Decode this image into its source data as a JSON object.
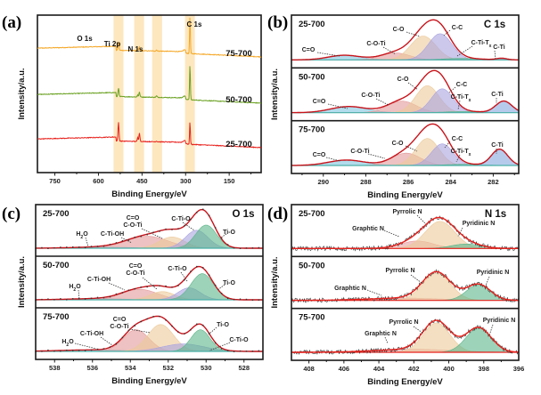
{
  "figure": {
    "panels": [
      "(a)",
      "(b)",
      "(c)",
      "(d)"
    ]
  },
  "chart_data": [
    {
      "panel": "(a)",
      "type": "line",
      "title": "",
      "xlabel": "Binding Energy/eV",
      "ylabel": "Intensity/a.u.",
      "xlim": [
        810,
        40
      ],
      "xticks": [
        750,
        600,
        450,
        300,
        150
      ],
      "xreversed": true,
      "highlight_bands": [
        {
          "label": "O 1s",
          "range": [
            548,
            514
          ],
          "peak": 531
        },
        {
          "label": "Ti 2p",
          "range": [
            477,
            443
          ],
          "peak": 459
        },
        {
          "label": "N 1s",
          "range": [
            415,
            381
          ],
          "peak": 400
        },
        {
          "label": "C 1s",
          "range": [
            302,
            268
          ],
          "peak": 285
        }
      ],
      "band_color": "#fde7bf",
      "series": [
        {
          "name": "75-700",
          "color": "#f5a623",
          "offset": 2.0,
          "peaks": {
            "O": 0.35,
            "Ti": 0.18,
            "N": 0.06,
            "C": 1.0
          }
        },
        {
          "name": "50-700",
          "color": "#6aa121",
          "offset": 1.0,
          "peaks": {
            "O": 0.35,
            "Ti": 0.25,
            "N": 0.08,
            "C": 0.95
          }
        },
        {
          "name": "25-700",
          "color": "#e8211c",
          "offset": 0.0,
          "peaks": {
            "O": 0.75,
            "Ti": 0.45,
            "N": 0.04,
            "C": 0.6
          }
        }
      ]
    },
    {
      "panel": "(b)",
      "type": "area",
      "core_level": "C 1s",
      "xlabel": "Binding Energy/eV",
      "ylabel": "Intensity/a.u.",
      "xlim": [
        291.5,
        280.8
      ],
      "xticks": [
        290,
        288,
        286,
        284,
        282
      ],
      "xreversed": true,
      "component_colors": {
        "C=O": "#7fc4e0",
        "C-O-Ti": "#e39a9a",
        "C-O": "#ecc99a",
        "C-C": "#a9a3e0",
        "C-Ti-Tx": "#5bb58a",
        "C-Ti": "#86a9e0"
      },
      "envelope_color": "#c8141b",
      "samples": [
        {
          "name": "25-700",
          "components": [
            {
              "label": "C=O",
              "center": 289.0,
              "fwhm": 1.8,
              "height": 0.12
            },
            {
              "label": "C-O-Ti",
              "center": 286.6,
              "fwhm": 1.6,
              "height": 0.18
            },
            {
              "label": "C-O",
              "center": 285.3,
              "fwhm": 1.4,
              "height": 0.62
            },
            {
              "label": "C-C",
              "center": 284.5,
              "fwhm": 1.3,
              "height": 0.68
            },
            {
              "label": "C-Ti-Tx",
              "center": 283.5,
              "fwhm": 2.0,
              "height": 0.04
            },
            {
              "label": "C-Ti",
              "center": 281.6,
              "fwhm": 0.6,
              "height": 0.04
            }
          ],
          "labels": [
            "C=O",
            "C-O-Ti",
            "C-O",
            "C-C",
            "C-Ti-Tₓ",
            "C-Ti"
          ]
        },
        {
          "name": "50-700",
          "components": [
            {
              "label": "C=O",
              "center": 288.8,
              "fwhm": 2.0,
              "height": 0.16
            },
            {
              "label": "C-O-Ti",
              "center": 286.3,
              "fwhm": 1.6,
              "height": 0.3
            },
            {
              "label": "C-O",
              "center": 285.1,
              "fwhm": 1.3,
              "height": 0.7
            },
            {
              "label": "C-C",
              "center": 284.4,
              "fwhm": 1.2,
              "height": 0.62
            },
            {
              "label": "C-Ti-Tx",
              "center": 283.4,
              "fwhm": 2.0,
              "height": 0.03
            },
            {
              "label": "C-Ti",
              "center": 281.5,
              "fwhm": 0.9,
              "height": 0.3
            }
          ],
          "labels": [
            "C=O",
            "C-O-Ti",
            "C-O",
            "C-C",
            "C-Ti-Tₓ",
            "C-Ti"
          ]
        },
        {
          "name": "75-700",
          "components": [
            {
              "label": "C=O",
              "center": 288.9,
              "fwhm": 2.0,
              "height": 0.14
            },
            {
              "label": "C-O-Ti",
              "center": 286.1,
              "fwhm": 1.6,
              "height": 0.32
            },
            {
              "label": "C-O",
              "center": 285.1,
              "fwhm": 1.3,
              "height": 0.7
            },
            {
              "label": "C-C",
              "center": 284.4,
              "fwhm": 1.2,
              "height": 0.56
            },
            {
              "label": "C-Ti-Tx",
              "center": 283.4,
              "fwhm": 2.0,
              "height": 0.03
            },
            {
              "label": "C-Ti",
              "center": 281.7,
              "fwhm": 0.9,
              "height": 0.42
            }
          ],
          "labels": [
            "C=O",
            "C-O-Ti",
            "C-O",
            "C-C",
            "C-Ti-Tₓ",
            "C-Ti"
          ]
        }
      ]
    },
    {
      "panel": "(c)",
      "type": "area",
      "core_level": "O 1s",
      "xlabel": "Binding Energy/eV",
      "ylabel": "Intensity/a.u.",
      "xlim": [
        539,
        527
      ],
      "xticks": [
        538,
        536,
        534,
        532,
        530,
        528
      ],
      "xreversed": true,
      "component_colors": {
        "H2O": "#7fc4e0",
        "C-Ti-OH": "#e39a9a",
        "C=O/C-O-Ti": "#ecc99a",
        "C-Ti-O": "#a9a3e0",
        "Ti-O": "#5bb58a"
      },
      "envelope_color": "#c8141b",
      "samples": [
        {
          "name": "25-700",
          "components": [
            {
              "label": "H2O",
              "center": 535.5,
              "fwhm": 3.5,
              "height": 0.03
            },
            {
              "label": "C-Ti-OH",
              "center": 533.1,
              "fwhm": 2.6,
              "height": 0.32
            },
            {
              "label": "C=O/C-O-Ti",
              "center": 531.8,
              "fwhm": 1.6,
              "height": 0.3
            },
            {
              "label": "C-Ti-O",
              "center": 530.5,
              "fwhm": 1.4,
              "height": 0.48
            },
            {
              "label": "Ti-O",
              "center": 530.0,
              "fwhm": 1.3,
              "height": 0.62
            }
          ],
          "labels": [
            "H₂O",
            "C-Ti-OH",
            "C=O",
            "C-O-Ti",
            "C-Ti-O",
            "Ti-O"
          ]
        },
        {
          "name": "50-700",
          "components": [
            {
              "label": "H2O",
              "center": 535.8,
              "fwhm": 3.5,
              "height": 0.03
            },
            {
              "label": "C-Ti-OH",
              "center": 533.5,
              "fwhm": 2.2,
              "height": 0.28
            },
            {
              "label": "C=O/C-O-Ti",
              "center": 532.3,
              "fwhm": 1.5,
              "height": 0.22
            },
            {
              "label": "C-Ti-O",
              "center": 530.9,
              "fwhm": 1.4,
              "height": 0.32
            },
            {
              "label": "Ti-O",
              "center": 530.2,
              "fwhm": 1.4,
              "height": 0.7
            }
          ],
          "labels": [
            "H₂O",
            "C-Ti-OH",
            "C=O",
            "C-O-Ti",
            "C-Ti-O",
            "Ti-O"
          ]
        },
        {
          "name": "75-700",
          "components": [
            {
              "label": "H2O",
              "center": 536.0,
              "fwhm": 4.0,
              "height": 0.04
            },
            {
              "label": "C-Ti-OH",
              "center": 533.7,
              "fwhm": 1.6,
              "height": 0.58
            },
            {
              "label": "C=O/C-O-Ti",
              "center": 532.4,
              "fwhm": 1.6,
              "height": 0.72
            },
            {
              "label": "C-Ti-O",
              "center": 531.2,
              "fwhm": 2.6,
              "height": 0.2
            },
            {
              "label": "Ti-O",
              "center": 530.3,
              "fwhm": 1.2,
              "height": 0.58
            }
          ],
          "labels": [
            "H₂O",
            "C-Ti-OH",
            "C=O",
            "C-O-Ti",
            "Ti-O",
            "C-Ti-O"
          ]
        }
      ]
    },
    {
      "panel": "(d)",
      "type": "area",
      "core_level": "N 1s",
      "xlabel": "Binding Energy/eV",
      "ylabel": "Intensity/a.u.",
      "xlim": [
        409,
        396
      ],
      "xticks": [
        408,
        406,
        404,
        402,
        400,
        398,
        396
      ],
      "xreversed": true,
      "component_colors": {
        "Graphitic N": "#e8a0a0",
        "Pyrrolic N": "#ecc99a",
        "Pyridinic N": "#5bb58a"
      },
      "envelope_color": "#e8211c",
      "samples": [
        {
          "name": "25-700",
          "components": [
            {
              "label": "Graphitic N",
              "center": 401.8,
              "fwhm": 2.2,
              "height": 0.2
            },
            {
              "label": "Pyrrolic N",
              "center": 400.5,
              "fwhm": 2.0,
              "height": 0.72
            },
            {
              "label": "Pyridinic N",
              "center": 399.0,
              "fwhm": 2.0,
              "height": 0.12
            }
          ],
          "labels": [
            "Graphtic N",
            "Pyrrolic N",
            "Pyridinic N"
          ]
        },
        {
          "name": "50-700",
          "components": [
            {
              "label": "Graphitic N",
              "center": 402.5,
              "fwhm": 5.0,
              "height": 0.06
            },
            {
              "label": "Pyrrolic N",
              "center": 400.7,
              "fwhm": 1.9,
              "height": 0.72
            },
            {
              "label": "Pyridinic N",
              "center": 398.3,
              "fwhm": 1.6,
              "height": 0.42
            }
          ],
          "labels": [
            "Graphtic N",
            "Pyrrolic N",
            "Pyridinic N"
          ]
        },
        {
          "name": "75-700",
          "components": [
            {
              "label": "Graphitic N",
              "center": 402.0,
              "fwhm": 5.0,
              "height": 0.08
            },
            {
              "label": "Pyrrolic N",
              "center": 400.7,
              "fwhm": 1.8,
              "height": 0.78
            },
            {
              "label": "Pyridinic N",
              "center": 398.3,
              "fwhm": 1.7,
              "height": 0.64
            }
          ],
          "labels": [
            "Graphtic N",
            "Pyrrolic N",
            "Pyridinic N"
          ]
        }
      ]
    }
  ]
}
